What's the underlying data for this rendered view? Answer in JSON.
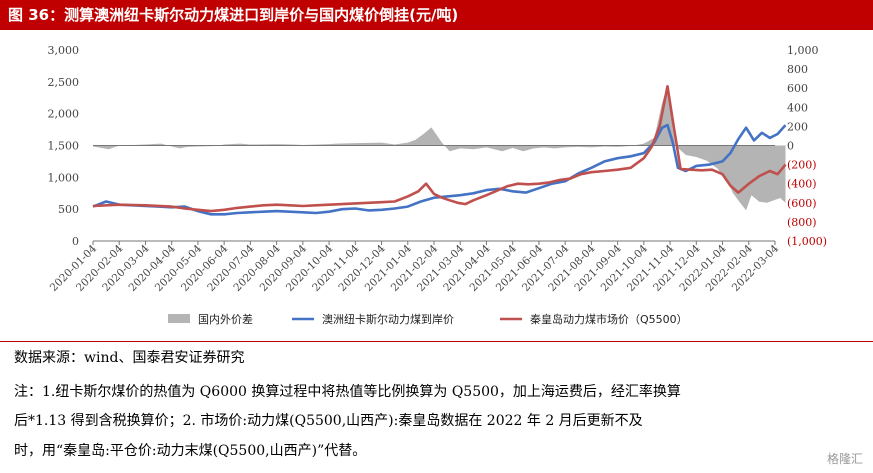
{
  "figure": {
    "title": "图 36：测算澳洲纽卡斯尔动力煤进口到岸价与国内煤价倒挂(元/吨)",
    "source": "数据来源：wind、国泰君安证券研究",
    "notes": [
      "注：1.纽卡斯尔煤价的热值为 Q6000 换算过程中将热值等比例换算为 Q5500，加上海运费后，经汇率换算",
      "后*1.13 得到含税换算价；2. 市场价:动力煤(Q5500,山西产):秦皇岛数据在 2022 年 2 月后更新不及",
      "时，用“秦皇岛:平仓价:动力末煤(Q5500,山西产)”代替。"
    ],
    "watermark": "格隆汇"
  },
  "chart_data": {
    "type": "line",
    "x": [
      "2020-01-04",
      "2020-02-04",
      "2020-03-04",
      "2020-04-04",
      "2020-05-04",
      "2020-06-04",
      "2020-07-04",
      "2020-08-04",
      "2020-09-04",
      "2020-10-04",
      "2020-11-04",
      "2020-12-04",
      "2021-01-04",
      "2021-02-04",
      "2021-03-04",
      "2021-04-04",
      "2021-05-04",
      "2021-06-04",
      "2021-07-04",
      "2021-08-04",
      "2021-09-04",
      "2021-10-04",
      "2021-11-04",
      "2021-12-04",
      "2022-01-04",
      "2022-02-04",
      "2022-03-04"
    ],
    "left_axis": {
      "ylim": [
        0,
        3000
      ],
      "ticks": [
        "0",
        "500",
        "1,000",
        "1,500",
        "2,000",
        "2,500",
        "3,000"
      ]
    },
    "right_axis": {
      "ylim": [
        -1000,
        1000
      ],
      "ticks": [
        "1,000",
        "800",
        "600",
        "400",
        "200",
        "0",
        "(200)",
        "(400)",
        "(600)",
        "(800)",
        "(1,000)"
      ],
      "negative_color": "#c00000",
      "positive_color": "#444444"
    },
    "series": [
      {
        "name": "国内外价差",
        "axis": "right",
        "kind": "area",
        "color": "#b4b4b4",
        "points": [
          [
            0,
            -10
          ],
          [
            0.6,
            -40
          ],
          [
            1,
            0
          ],
          [
            2,
            10
          ],
          [
            2.6,
            20
          ],
          [
            3,
            -10
          ],
          [
            3.3,
            -30
          ],
          [
            3.6,
            -15
          ],
          [
            4,
            -10
          ],
          [
            4.7,
            -5
          ],
          [
            5,
            10
          ],
          [
            5.6,
            20
          ],
          [
            6,
            10
          ],
          [
            7,
            15
          ],
          [
            7.6,
            10
          ],
          [
            8,
            5
          ],
          [
            8.6,
            10
          ],
          [
            9,
            15
          ],
          [
            9.3,
            20
          ],
          [
            10,
            25
          ],
          [
            11,
            30
          ],
          [
            11.5,
            10
          ],
          [
            12,
            30
          ],
          [
            12.3,
            60
          ],
          [
            12.6,
            120
          ],
          [
            12.9,
            190
          ],
          [
            13.3,
            30
          ],
          [
            13.6,
            -60
          ],
          [
            14,
            -30
          ],
          [
            14.5,
            -40
          ],
          [
            15,
            -20
          ],
          [
            15.6,
            -60
          ],
          [
            16,
            -25
          ],
          [
            16.4,
            -60
          ],
          [
            16.8,
            -30
          ],
          [
            17.2,
            -20
          ],
          [
            17.6,
            -30
          ],
          [
            18,
            -20
          ],
          [
            18.5,
            -15
          ],
          [
            19,
            -20
          ],
          [
            19.5,
            -10
          ],
          [
            20,
            -15
          ],
          [
            20.5,
            -5
          ],
          [
            21,
            20
          ],
          [
            21.4,
            80
          ],
          [
            21.7,
            450
          ],
          [
            21.9,
            620
          ],
          [
            22.1,
            180
          ],
          [
            22.2,
            0
          ],
          [
            22.6,
            -100
          ],
          [
            23,
            -120
          ],
          [
            23.4,
            -160
          ],
          [
            23.8,
            -240
          ],
          [
            24.2,
            -380
          ],
          [
            24.4,
            -500
          ],
          [
            24.7,
            -610
          ],
          [
            24.9,
            -680
          ],
          [
            25.1,
            -520
          ],
          [
            25.4,
            -590
          ],
          [
            25.7,
            -600
          ],
          [
            26,
            -570
          ],
          [
            26.2,
            -550
          ],
          [
            26.4,
            -600
          ]
        ]
      },
      {
        "name": "澳洲纽卡斯尔动力煤到岸价",
        "axis": "left",
        "kind": "line",
        "color": "#4472c4",
        "points": [
          [
            0,
            540
          ],
          [
            0.5,
            620
          ],
          [
            1,
            570
          ],
          [
            1.5,
            560
          ],
          [
            2,
            550
          ],
          [
            2.5,
            540
          ],
          [
            3,
            530
          ],
          [
            3.5,
            540
          ],
          [
            4,
            470
          ],
          [
            4.5,
            420
          ],
          [
            5,
            420
          ],
          [
            5.5,
            440
          ],
          [
            6,
            450
          ],
          [
            6.5,
            460
          ],
          [
            7,
            470
          ],
          [
            7.5,
            460
          ],
          [
            8,
            450
          ],
          [
            8.5,
            440
          ],
          [
            9,
            460
          ],
          [
            9.5,
            500
          ],
          [
            10,
            510
          ],
          [
            10.5,
            480
          ],
          [
            11,
            490
          ],
          [
            11.5,
            510
          ],
          [
            12,
            540
          ],
          [
            12.5,
            620
          ],
          [
            13,
            680
          ],
          [
            13.5,
            700
          ],
          [
            14,
            720
          ],
          [
            14.5,
            750
          ],
          [
            15,
            800
          ],
          [
            15.5,
            820
          ],
          [
            16,
            780
          ],
          [
            16.5,
            760
          ],
          [
            17,
            830
          ],
          [
            17.5,
            900
          ],
          [
            18,
            940
          ],
          [
            18.5,
            1060
          ],
          [
            19,
            1150
          ],
          [
            19.5,
            1250
          ],
          [
            20,
            1300
          ],
          [
            20.5,
            1330
          ],
          [
            21,
            1380
          ],
          [
            21.4,
            1550
          ],
          [
            21.7,
            1780
          ],
          [
            21.9,
            1820
          ],
          [
            22.1,
            1550
          ],
          [
            22.3,
            1150
          ],
          [
            22.6,
            1100
          ],
          [
            23,
            1180
          ],
          [
            23.5,
            1200
          ],
          [
            24,
            1250
          ],
          [
            24.3,
            1380
          ],
          [
            24.6,
            1600
          ],
          [
            24.9,
            1780
          ],
          [
            25.2,
            1580
          ],
          [
            25.5,
            1700
          ],
          [
            25.8,
            1620
          ],
          [
            26.1,
            1680
          ],
          [
            26.4,
            1820
          ]
        ]
      },
      {
        "name": "秦皇岛动力煤市场价（Q5500）",
        "axis": "left",
        "kind": "line",
        "color": "#c0504d",
        "points": [
          [
            0,
            550
          ],
          [
            1,
            570
          ],
          [
            2,
            560
          ],
          [
            3,
            540
          ],
          [
            3.5,
            510
          ],
          [
            4,
            490
          ],
          [
            4.5,
            470
          ],
          [
            5,
            490
          ],
          [
            5.5,
            520
          ],
          [
            6,
            540
          ],
          [
            6.5,
            560
          ],
          [
            7,
            570
          ],
          [
            7.5,
            560
          ],
          [
            8,
            550
          ],
          [
            8.5,
            560
          ],
          [
            9,
            570
          ],
          [
            9.5,
            580
          ],
          [
            10,
            590
          ],
          [
            10.5,
            600
          ],
          [
            11,
            610
          ],
          [
            11.5,
            620
          ],
          [
            12,
            700
          ],
          [
            12.4,
            780
          ],
          [
            12.7,
            900
          ],
          [
            13,
            740
          ],
          [
            13.3,
            680
          ],
          [
            13.6,
            640
          ],
          [
            13.9,
            600
          ],
          [
            14.2,
            580
          ],
          [
            14.5,
            640
          ],
          [
            15,
            720
          ],
          [
            15.4,
            790
          ],
          [
            15.8,
            860
          ],
          [
            16.2,
            900
          ],
          [
            16.6,
            890
          ],
          [
            17,
            900
          ],
          [
            17.4,
            920
          ],
          [
            17.8,
            960
          ],
          [
            18.2,
            980
          ],
          [
            18.6,
            1050
          ],
          [
            19,
            1080
          ],
          [
            19.5,
            1100
          ],
          [
            20,
            1120
          ],
          [
            20.5,
            1150
          ],
          [
            21,
            1300
          ],
          [
            21.3,
            1480
          ],
          [
            21.6,
            1800
          ],
          [
            21.9,
            2430
          ],
          [
            22.1,
            1900
          ],
          [
            22.4,
            1130
          ],
          [
            22.8,
            1120
          ],
          [
            23.2,
            1110
          ],
          [
            23.6,
            1120
          ],
          [
            24,
            1050
          ],
          [
            24.3,
            870
          ],
          [
            24.6,
            760
          ],
          [
            25,
            900
          ],
          [
            25.4,
            1020
          ],
          [
            25.8,
            1100
          ],
          [
            26.1,
            1050
          ],
          [
            26.4,
            1200
          ]
        ]
      }
    ],
    "legend": [
      "国内外价差",
      "澳洲纽卡斯尔动力煤到岸价",
      "秦皇岛动力煤市场价（Q5500）"
    ],
    "legend_placement": "bottom",
    "grid": false
  }
}
